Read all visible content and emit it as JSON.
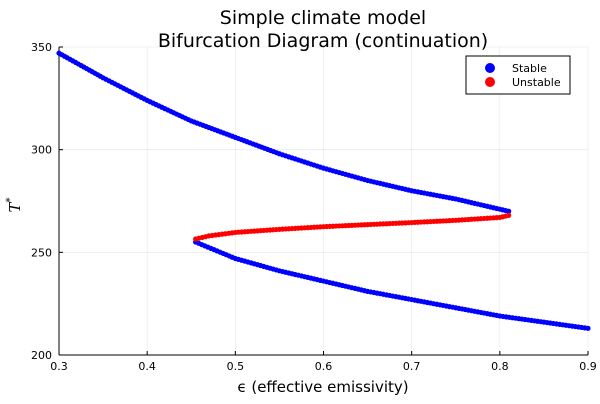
{
  "chart_data": {
    "type": "scatter",
    "title": [
      "Simple climate model",
      "Bifurcation Diagram (continuation)"
    ],
    "xlabel": "ϵ (effective emissivity)",
    "ylabel": "T",
    "ylabel_superscript": "*",
    "xlim": [
      0.3,
      0.9
    ],
    "ylim": [
      200,
      350
    ],
    "xticks": [
      0.3,
      0.4,
      0.5,
      0.6,
      0.7,
      0.8,
      0.9
    ],
    "xtick_labels": [
      "0.3",
      "0.4",
      "0.5",
      "0.6",
      "0.7",
      "0.8",
      "0.9"
    ],
    "yticks": [
      200,
      250,
      300,
      350
    ],
    "ytick_labels": [
      "200",
      "250",
      "300",
      "350"
    ],
    "grid": true,
    "legend_position": "top-right",
    "series": [
      {
        "name": "Stable",
        "color": "#0000ff",
        "segments": [
          {
            "x": [
              0.3,
              0.35,
              0.4,
              0.45,
              0.5,
              0.55,
              0.6,
              0.65,
              0.7,
              0.75,
              0.8,
              0.81
            ],
            "y": [
              347,
              335,
              324,
              314,
              306,
              298,
              291,
              285,
              280,
              276,
              271,
              270
            ]
          },
          {
            "x": [
              0.455,
              0.5,
              0.55,
              0.6,
              0.65,
              0.7,
              0.75,
              0.8,
              0.85,
              0.9
            ],
            "y": [
              255,
              247,
              241,
              236,
              231,
              227,
              223,
              219,
              216,
              213
            ]
          }
        ]
      },
      {
        "name": "Unstable",
        "color": "#ff0000",
        "segments": [
          {
            "x": [
              0.455,
              0.47,
              0.5,
              0.55,
              0.6,
              0.65,
              0.7,
              0.75,
              0.8,
              0.81
            ],
            "y": [
              256.5,
              258,
              259.7,
              261.2,
              262.5,
              263.5,
              264.5,
              265.6,
              267,
              268
            ]
          }
        ]
      }
    ]
  }
}
